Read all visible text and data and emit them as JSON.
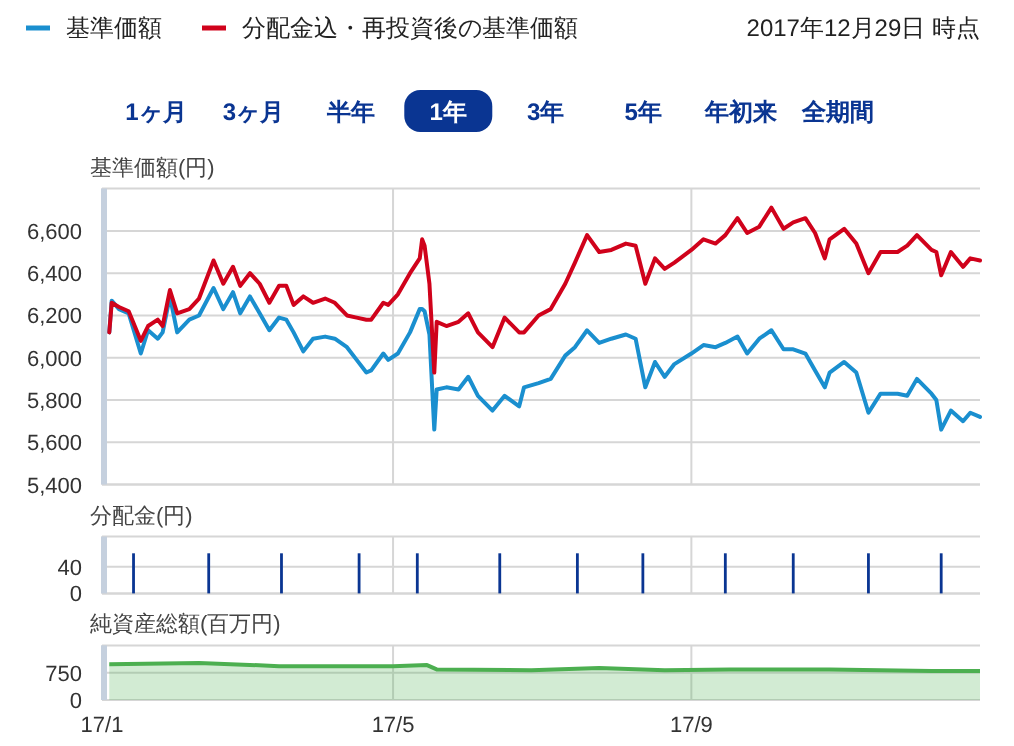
{
  "chart_data": [
    {
      "type": "line",
      "ylabel": "基準価額(円)",
      "subtitle": "2017年12月29日 時点",
      "legend": "top",
      "grid": true,
      "tick_labels": "y",
      "xlim": [
        "2017-01-01",
        "2017-12-29"
      ],
      "xticks": [
        {
          "value": "2017-01-01",
          "label": null
        },
        {
          "value": "2017-05-01",
          "label": null
        },
        {
          "value": "2017-09-01",
          "label": null
        }
      ],
      "ylim": [
        5400,
        6800
      ],
      "yticks": [
        {
          "value": 5400,
          "label": "5,400"
        },
        {
          "value": 5600,
          "label": "5,600"
        },
        {
          "value": 5800,
          "label": "5,800"
        },
        {
          "value": 6000,
          "label": "6,000"
        },
        {
          "value": 6200,
          "label": "6,200"
        },
        {
          "value": 6400,
          "label": "6,400"
        },
        {
          "value": 6600,
          "label": "6,600"
        }
      ],
      "x": [
        "2017-01-04",
        "2017-01-05",
        "2017-01-08",
        "2017-01-12",
        "2017-01-17",
        "2017-01-20",
        "2017-01-24",
        "2017-01-26",
        "2017-01-29",
        "2017-02-01",
        "2017-02-06",
        "2017-02-10",
        "2017-02-16",
        "2017-02-20",
        "2017-02-24",
        "2017-02-27",
        "2017-03-03",
        "2017-03-07",
        "2017-03-11",
        "2017-03-15",
        "2017-03-18",
        "2017-03-21",
        "2017-03-25",
        "2017-03-29",
        "2017-04-03",
        "2017-04-07",
        "2017-04-12",
        "2017-04-16",
        "2017-04-20",
        "2017-04-22",
        "2017-04-27",
        "2017-04-29",
        "2017-05-03",
        "2017-05-08",
        "2017-05-12",
        "2017-05-13",
        "2017-05-14",
        "2017-05-16",
        "2017-05-18",
        "2017-05-19",
        "2017-05-23",
        "2017-05-28",
        "2017-06-01",
        "2017-06-05",
        "2017-06-11",
        "2017-06-16",
        "2017-06-22",
        "2017-06-24",
        "2017-06-30",
        "2017-07-05",
        "2017-07-11",
        "2017-07-15",
        "2017-07-20",
        "2017-07-25",
        "2017-07-30",
        "2017-08-05",
        "2017-08-09",
        "2017-08-13",
        "2017-08-17",
        "2017-08-21",
        "2017-08-25",
        "2017-09-01",
        "2017-09-06",
        "2017-09-11",
        "2017-09-15",
        "2017-09-20",
        "2017-09-24",
        "2017-09-29",
        "2017-10-04",
        "2017-10-09",
        "2017-10-13",
        "2017-10-18",
        "2017-10-22",
        "2017-10-26",
        "2017-10-28",
        "2017-11-03",
        "2017-11-08",
        "2017-11-13",
        "2017-11-18",
        "2017-11-25",
        "2017-11-29",
        "2017-12-03",
        "2017-12-09",
        "2017-12-11",
        "2017-12-13",
        "2017-12-17",
        "2017-12-22",
        "2017-12-25",
        "2017-12-29"
      ],
      "series": [
        {
          "name": "基準価額",
          "color": "#1a8fcf",
          "values": [
            6120,
            6270,
            6230,
            6210,
            6020,
            6130,
            6090,
            6120,
            6290,
            6120,
            6180,
            6200,
            6330,
            6230,
            6310,
            6210,
            6290,
            6210,
            6130,
            6190,
            6180,
            6120,
            6030,
            6090,
            6100,
            6090,
            6050,
            5990,
            5930,
            5940,
            6020,
            5990,
            6020,
            6120,
            6230,
            6230,
            6220,
            6110,
            5660,
            5850,
            5860,
            5850,
            5910,
            5820,
            5750,
            5820,
            5770,
            5860,
            5880,
            5900,
            6010,
            6050,
            6130,
            6070,
            6090,
            6110,
            6090,
            5860,
            5980,
            5910,
            5970,
            6020,
            6060,
            6050,
            6070,
            6100,
            6020,
            6090,
            6130,
            6040,
            6040,
            6020,
            5940,
            5860,
            5930,
            5980,
            5930,
            5740,
            5830,
            5830,
            5820,
            5900,
            5830,
            5800,
            5660,
            5750,
            5700,
            5740,
            5720
          ]
        },
        {
          "name": "分配金込・再投資後の基準価額",
          "color": "#d0021b",
          "values": [
            6120,
            6260,
            6240,
            6220,
            6080,
            6150,
            6180,
            6150,
            6320,
            6210,
            6230,
            6280,
            6460,
            6350,
            6430,
            6340,
            6400,
            6350,
            6260,
            6340,
            6340,
            6250,
            6290,
            6260,
            6280,
            6260,
            6200,
            6190,
            6180,
            6180,
            6260,
            6250,
            6300,
            6400,
            6470,
            6560,
            6530,
            6350,
            5930,
            6170,
            6150,
            6170,
            6210,
            6120,
            6050,
            6190,
            6120,
            6120,
            6200,
            6230,
            6350,
            6450,
            6580,
            6500,
            6510,
            6540,
            6530,
            6350,
            6470,
            6420,
            6450,
            6510,
            6560,
            6540,
            6580,
            6660,
            6590,
            6620,
            6710,
            6610,
            6640,
            6660,
            6590,
            6470,
            6560,
            6610,
            6540,
            6400,
            6500,
            6500,
            6530,
            6580,
            6510,
            6500,
            6390,
            6500,
            6430,
            6470,
            6460
          ]
        }
      ]
    },
    {
      "type": "other",
      "categories": [
        "1ヶ月",
        "3ヶ月",
        "半年",
        "1年",
        "3年",
        "5年",
        "年初来",
        "全期間"
      ],
      "colors": [
        "#ffffff",
        "#ffffff",
        "#ffffff",
        "#0a3592",
        "#ffffff",
        "#ffffff",
        "#ffffff",
        "#ffffff"
      ]
    },
    {
      "type": "bar",
      "ylabel": "分配金(円)",
      "grid": true,
      "tick_labels": "y",
      "color": "#0a3592",
      "xlim": [
        "2017-01-01",
        "2017-12-29"
      ],
      "xticks": [
        {
          "value": "2017-01-01",
          "label": null
        },
        {
          "value": "2017-05-01",
          "label": null
        },
        {
          "value": "2017-09-01",
          "label": null
        }
      ],
      "ylim": [
        0,
        85
      ],
      "yticks": [
        0,
        40
      ],
      "x": [
        "2017-01-14",
        "2017-02-14",
        "2017-03-16",
        "2017-04-17",
        "2017-05-11",
        "2017-06-14",
        "2017-07-16",
        "2017-08-12",
        "2017-09-15",
        "2017-10-13",
        "2017-11-13",
        "2017-12-13"
      ],
      "values": [
        60,
        60,
        60,
        60,
        60,
        60,
        60,
        60,
        60,
        60,
        60,
        60
      ]
    },
    {
      "type": "area",
      "ylabel": "純資産総額(百万円)",
      "grid": true,
      "color": "#4caf50",
      "xlim": [
        "2017-01-01",
        "2017-12-29"
      ],
      "xticks": [
        {
          "value": "2017-01-01",
          "label": "17/1"
        },
        {
          "value": "2017-05-01",
          "label": "17/5"
        },
        {
          "value": "2017-09-01",
          "label": "17/9"
        }
      ],
      "ylim": [
        0,
        1500
      ],
      "yticks": [
        0,
        750
      ],
      "x": [
        "2017-01-04",
        "2017-02-10",
        "2017-03-15",
        "2017-05-01",
        "2017-05-15",
        "2017-05-19",
        "2017-06-27",
        "2017-07-25",
        "2017-08-21",
        "2017-09-17",
        "2017-10-28",
        "2017-12-09",
        "2017-12-29"
      ],
      "values": [
        980,
        1020,
        930,
        930,
        960,
        840,
        820,
        880,
        820,
        840,
        840,
        800,
        800
      ]
    }
  ]
}
